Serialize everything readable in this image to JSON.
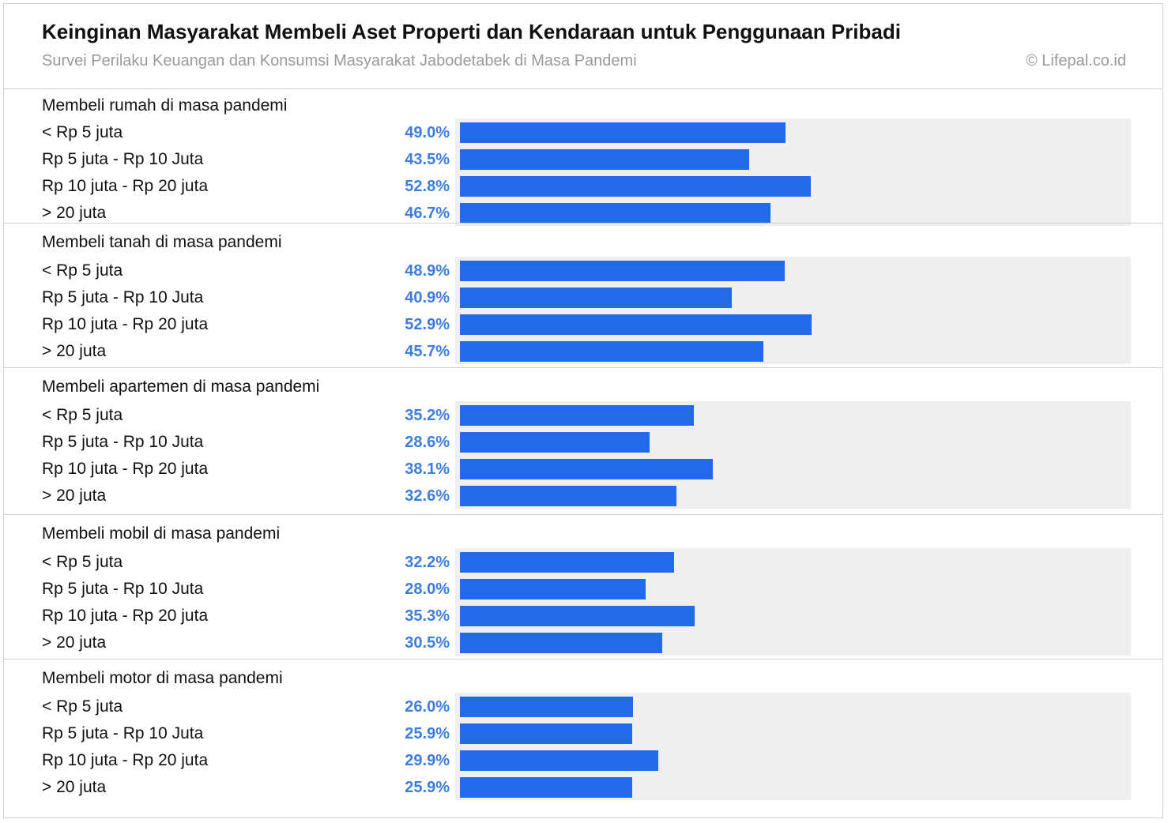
{
  "header": {
    "title": "Keinginan Masyarakat Membeli Aset Properti dan Kendaraan untuk Penggunaan Pribadi",
    "subtitle": "Survei Perilaku Keuangan dan Konsumsi Masyarakat Jabodetabek di Masa Pandemi",
    "credit": "© Lifepal.co.id"
  },
  "colors": {
    "bar": "#2469e8",
    "value_text": "#3d7de0",
    "track": "#efefef"
  },
  "chart_data": {
    "type": "bar",
    "orientation": "horizontal",
    "unit": "%",
    "categories": [
      "< Rp 5 juta",
      "Rp 5 juta -  Rp 10 Juta",
      "Rp 10 juta - Rp 20 juta",
      "> 20 juta"
    ],
    "groups": [
      {
        "title": "Membeli rumah di masa pandemi",
        "rows": [
          {
            "label": "< Rp 5 juta",
            "value": 49.0,
            "display": "49.0%"
          },
          {
            "label": "Rp 5 juta -  Rp 10 Juta",
            "value": 43.5,
            "display": "43.5%"
          },
          {
            "label": "Rp 10 juta - Rp 20 juta",
            "value": 52.8,
            "display": "52.8%"
          },
          {
            "label": "> 20 juta",
            "value": 46.7,
            "display": "46.7%"
          }
        ]
      },
      {
        "title": "Membeli tanah di masa pandemi",
        "rows": [
          {
            "label": "< Rp 5 juta",
            "value": 48.9,
            "display": "48.9%"
          },
          {
            "label": "Rp 5 juta -  Rp 10 Juta",
            "value": 40.9,
            "display": "40.9%"
          },
          {
            "label": "Rp 10 juta - Rp 20 juta",
            "value": 52.9,
            "display": "52.9%"
          },
          {
            "label": "> 20 juta",
            "value": 45.7,
            "display": "45.7%"
          }
        ]
      },
      {
        "title": "Membeli apartemen di masa pandemi",
        "rows": [
          {
            "label": "< Rp 5 juta",
            "value": 35.2,
            "display": "35.2%"
          },
          {
            "label": "Rp 5 juta -  Rp 10 Juta",
            "value": 28.6,
            "display": "28.6%"
          },
          {
            "label": "Rp 10 juta - Rp 20 juta",
            "value": 38.1,
            "display": "38.1%"
          },
          {
            "label": "> 20 juta",
            "value": 32.6,
            "display": "32.6%"
          }
        ]
      },
      {
        "title": "Membeli mobil di masa pandemi",
        "rows": [
          {
            "label": "< Rp 5 juta",
            "value": 32.2,
            "display": "32.2%"
          },
          {
            "label": "Rp 5 juta -  Rp 10 Juta",
            "value": 28.0,
            "display": "28.0%"
          },
          {
            "label": "Rp 10 juta - Rp 20 juta",
            "value": 35.3,
            "display": "35.3%"
          },
          {
            "label": "> 20 juta",
            "value": 30.5,
            "display": "30.5%"
          }
        ]
      },
      {
        "title": "Membeli motor di masa pandemi",
        "rows": [
          {
            "label": "< Rp 5 juta",
            "value": 26.0,
            "display": "26.0%"
          },
          {
            "label": "Rp 5 juta -  Rp 10 Juta",
            "value": 25.9,
            "display": "25.9%"
          },
          {
            "label": "Rp 10 juta - Rp 20 juta",
            "value": 29.9,
            "display": "29.9%"
          },
          {
            "label": "> 20 juta",
            "value": 25.9,
            "display": "25.9%"
          }
        ]
      }
    ]
  }
}
